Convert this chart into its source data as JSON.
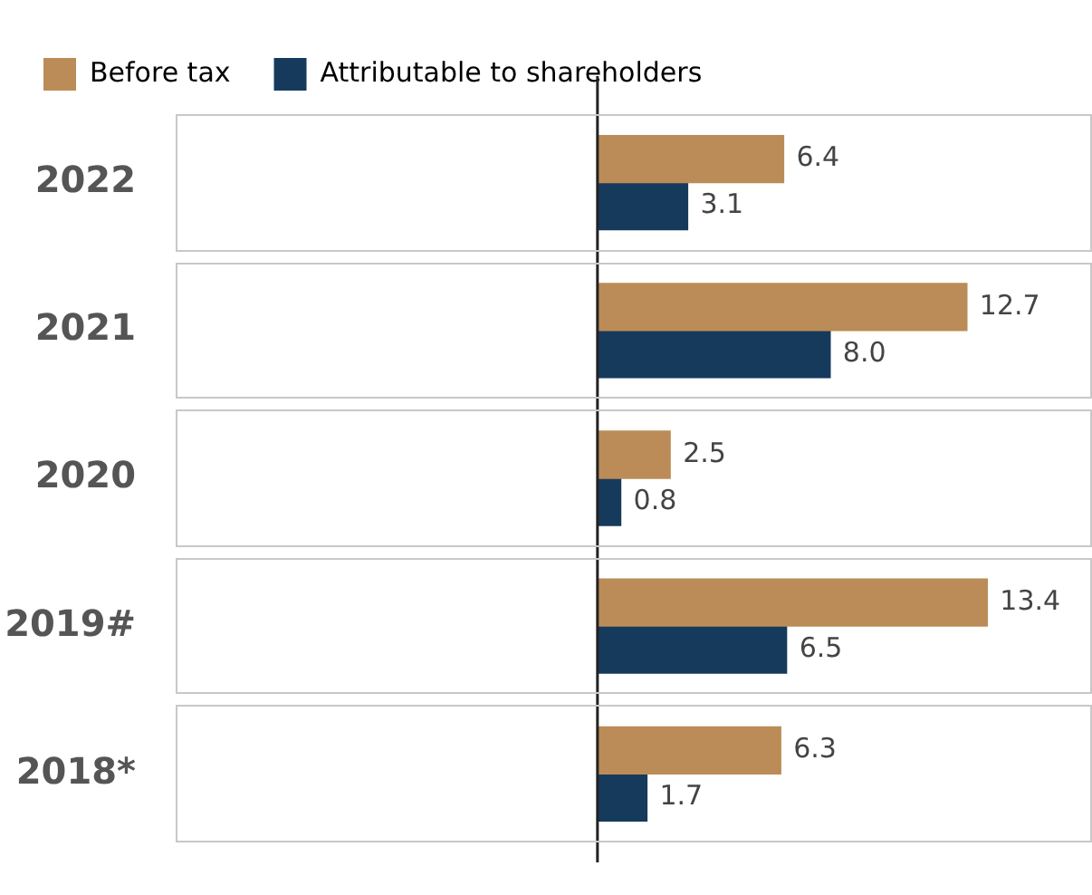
{
  "chart_data": {
    "type": "bar",
    "orientation": "horizontal",
    "categories": [
      "2022",
      "2021",
      "2020",
      "2019#",
      "2018*"
    ],
    "series": [
      {
        "name": "Before tax",
        "color": "#bb8c57",
        "values": [
          6.4,
          12.7,
          2.5,
          13.4,
          6.3
        ],
        "value_labels": [
          "6.4",
          "12.7",
          "2.5",
          "13.4",
          "6.3"
        ]
      },
      {
        "name": "Attributable to shareholders",
        "color": "#163a5c",
        "values": [
          3.1,
          8.0,
          0.8,
          6.5,
          1.7
        ],
        "value_labels": [
          "3.1",
          "8.0",
          "0.8",
          "6.5",
          "1.7"
        ]
      }
    ],
    "xlim": [
      -14.5,
      17
    ],
    "tick_labels": "y",
    "grid": false,
    "legend": "top",
    "ref_lines": [
      {
        "axis": "x",
        "value": 0,
        "color": "#222222"
      }
    ]
  }
}
